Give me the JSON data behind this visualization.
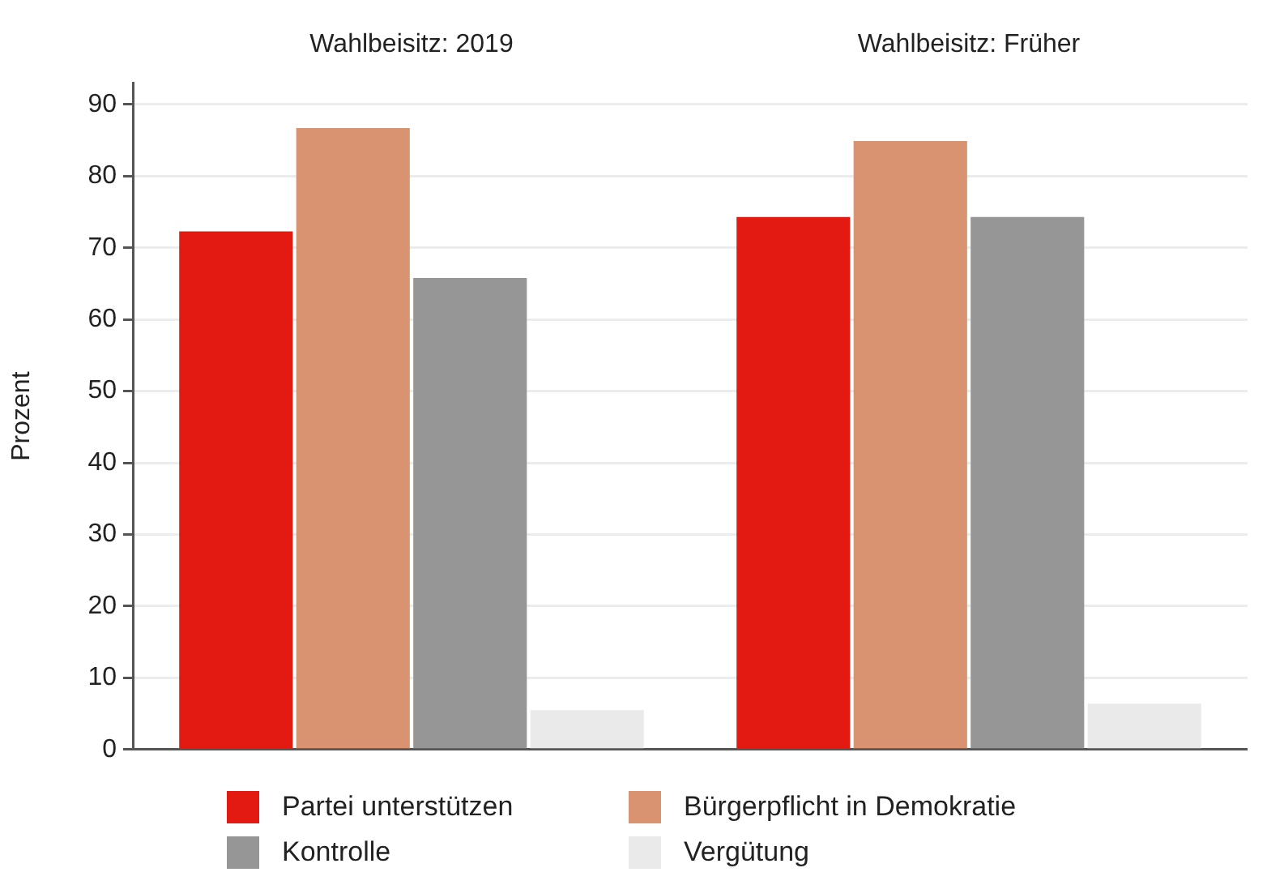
{
  "chart_data": {
    "type": "bar",
    "ylabel": "Prozent",
    "categories": [
      "Wahlbeisitz: 2019",
      "Wahlbeisitz: Früher"
    ],
    "series": [
      {
        "name": "Partei unterstützen",
        "color": "#e31a12",
        "values": [
          72.3,
          74.3
        ]
      },
      {
        "name": "Bürgerpflicht in Demokratie",
        "color": "#d99370",
        "values": [
          86.7,
          84.9
        ]
      },
      {
        "name": "Kontrolle",
        "color": "#959695",
        "values": [
          65.8,
          74.3
        ]
      },
      {
        "name": "Vergütung",
        "color": "#eaeaea",
        "values": [
          5.5,
          6.4
        ]
      }
    ],
    "ylim": [
      0,
      93
    ],
    "yticks": [
      0,
      10,
      20,
      30,
      40,
      50,
      60,
      70,
      80,
      90
    ],
    "grid": "y",
    "legend": "bottom"
  }
}
